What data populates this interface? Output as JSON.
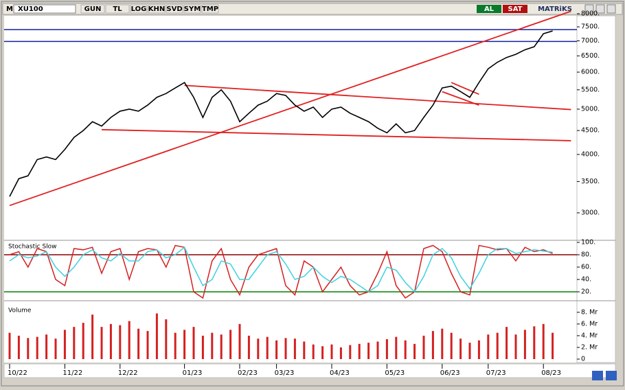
{
  "toolbar": {
    "logo": "M",
    "symbol": "XU100",
    "buttons": [
      "GUN",
      "TL",
      "LOG",
      "KHN",
      "SVD",
      "SYM",
      "TMP"
    ],
    "buy": "AL",
    "sell": "SAT",
    "brand": "MATRiKS"
  },
  "chart_data": [
    {
      "type": "line",
      "log_scale": true,
      "categories": [
        "10/22",
        null,
        null,
        null,
        null,
        null,
        "11/22",
        null,
        null,
        null,
        null,
        null,
        "12/22",
        null,
        null,
        null,
        null,
        null,
        null,
        "01/23",
        null,
        null,
        null,
        null,
        null,
        "02/23",
        null,
        null,
        null,
        "03/23",
        null,
        null,
        null,
        null,
        null,
        "04/23",
        null,
        null,
        null,
        null,
        null,
        "05/23",
        null,
        null,
        null,
        null,
        null,
        "06/23",
        null,
        null,
        null,
        null,
        "07/23",
        null,
        null,
        null,
        null,
        null,
        "08/23",
        null
      ],
      "series": [
        {
          "color": "#000000",
          "values": [
            3250,
            3550,
            3600,
            3900,
            3950,
            3900,
            4100,
            4350,
            4500,
            4700,
            4600,
            4800,
            4950,
            5000,
            4950,
            5100,
            5300,
            5400,
            5550,
            5700,
            5300,
            4800,
            5300,
            5500,
            5200,
            4700,
            4900,
            5100,
            5200,
            5400,
            5350,
            5100,
            4950,
            5050,
            4800,
            5000,
            5050,
            4900,
            4800,
            4700,
            4550,
            4450,
            4650,
            4450,
            4500,
            4800,
            5100,
            5550,
            5600,
            5450,
            5300,
            5700,
            6100,
            6300,
            6450,
            6550,
            6700,
            6800,
            7250,
            7350
          ]
        }
      ],
      "ylim": [
        2620,
        8220
      ],
      "yticks": [
        {
          "value": 3000,
          "label": "3000."
        },
        {
          "value": 3500,
          "label": "3500."
        },
        {
          "value": 4000,
          "label": "4000."
        },
        {
          "value": 4500,
          "label": "4500."
        },
        {
          "value": 5000,
          "label": "5000."
        },
        {
          "value": 5500,
          "label": "5500."
        },
        {
          "value": 6000,
          "label": "6000."
        },
        {
          "value": 6500,
          "label": "6500."
        },
        {
          "value": 7000,
          "label": "7000."
        },
        {
          "value": 7500,
          "label": "7500."
        },
        {
          "value": 8000,
          "label": "8000."
        }
      ],
      "hlines": [
        {
          "value": 7400,
          "color": "#1020a0"
        },
        {
          "value": 6980,
          "color": "#1020a0"
        }
      ],
      "trendlines": [
        {
          "color": "#e02020",
          "points": [
            [
              0,
              3110
            ],
            [
              61,
              8100
            ]
          ]
        },
        {
          "color": "#e02020",
          "points": [
            [
              19,
              5620
            ],
            [
              61,
              4990
            ]
          ]
        },
        {
          "color": "#e02020",
          "points": [
            [
              10,
              4520
            ],
            [
              61,
              4280
            ]
          ]
        },
        {
          "color": "#e02020",
          "points": [
            [
              48,
              5700
            ],
            [
              51,
              5380
            ]
          ]
        },
        {
          "color": "#e02020",
          "points": [
            [
              47,
              5450
            ],
            [
              51,
              5100
            ]
          ]
        }
      ]
    },
    {
      "type": "line",
      "title": "Stochastic Slow",
      "series": [
        {
          "color": "#d42020",
          "values": [
            80,
            85,
            60,
            90,
            85,
            40,
            30,
            90,
            88,
            92,
            50,
            85,
            90,
            40,
            85,
            90,
            88,
            60,
            95,
            92,
            20,
            10,
            70,
            90,
            40,
            15,
            60,
            80,
            85,
            90,
            30,
            15,
            70,
            60,
            20,
            40,
            60,
            30,
            15,
            20,
            50,
            85,
            30,
            10,
            20,
            90,
            95,
            85,
            50,
            20,
            15,
            95,
            92,
            88,
            90,
            70,
            92,
            85,
            88,
            82
          ]
        },
        {
          "color": "#40d0e0",
          "values": [
            70,
            80,
            75,
            78,
            85,
            60,
            45,
            60,
            80,
            88,
            75,
            70,
            82,
            70,
            70,
            85,
            88,
            75,
            80,
            92,
            60,
            30,
            40,
            70,
            65,
            40,
            40,
            60,
            80,
            85,
            65,
            40,
            45,
            60,
            45,
            35,
            45,
            40,
            30,
            20,
            30,
            60,
            55,
            35,
            20,
            45,
            80,
            90,
            75,
            45,
            25,
            50,
            80,
            90,
            90,
            82,
            85,
            88,
            86,
            84
          ]
        }
      ],
      "ylim": [
        0,
        100
      ],
      "yticks": [
        {
          "value": 20,
          "label": "20."
        },
        {
          "value": 40,
          "label": "40."
        },
        {
          "value": 60,
          "label": "60."
        },
        {
          "value": 80,
          "label": "80."
        },
        {
          "value": 100,
          "label": "100."
        }
      ],
      "hlines": [
        {
          "value": 80,
          "color": "#8b0000"
        },
        {
          "value": 20,
          "color": "#008000"
        }
      ]
    },
    {
      "type": "bar",
      "title": "Volume",
      "color": "#d42020",
      "values": [
        4.5,
        4.0,
        3.6,
        3.8,
        4.2,
        3.5,
        5.0,
        5.5,
        6.2,
        7.6,
        5.5,
        6.0,
        5.8,
        6.5,
        5.2,
        4.8,
        7.8,
        6.8,
        4.5,
        5.0,
        5.5,
        4.0,
        4.5,
        4.2,
        5.0,
        6.0,
        4.0,
        3.5,
        3.8,
        3.2,
        3.6,
        3.5,
        3.0,
        2.5,
        2.2,
        2.5,
        2.0,
        2.4,
        2.6,
        2.8,
        3.0,
        3.4,
        3.8,
        3.2,
        2.6,
        4.0,
        4.8,
        5.2,
        4.5,
        3.5,
        2.8,
        3.2,
        4.2,
        4.5,
        5.5,
        4.2,
        5.0,
        5.6,
        6.0,
        4.5
      ],
      "ylim": [
        0,
        8.8
      ],
      "yticks": [
        0,
        {
          "value": 2,
          "label": "2. Mr"
        },
        {
          "value": 4,
          "label": "4. Mr"
        },
        {
          "value": 6,
          "label": "6. Mr"
        },
        {
          "value": 8,
          "label": "8. Mr"
        }
      ]
    }
  ]
}
